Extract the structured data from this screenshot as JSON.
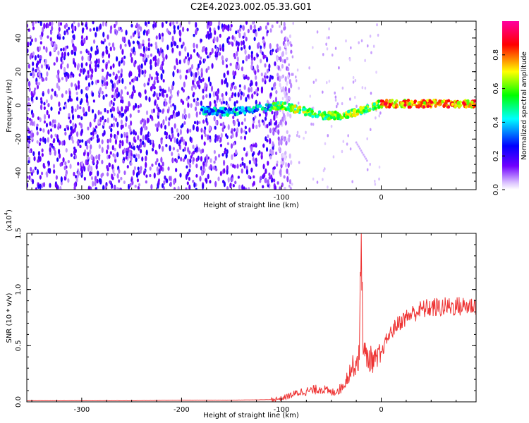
{
  "title": "C2E4.2023.002.05.33.G01",
  "chart_data": [
    {
      "type": "heatmap",
      "xlabel": "Height of straight line (km)",
      "ylabel": "Frequency (Hz)",
      "xlim": [
        -355,
        95
      ],
      "ylim": [
        -50,
        50
      ],
      "xticks": [
        -300,
        -200,
        -100,
        0
      ],
      "xtick_labels": [
        "-300",
        "-200",
        "-100",
        "0"
      ],
      "yticks": [
        -40,
        -20,
        0,
        20,
        40
      ],
      "ytick_labels": [
        "-40",
        "-20",
        "0",
        "20",
        "40"
      ],
      "noise_region_x": [
        -355,
        -105
      ],
      "signal_track": {
        "x": [
          -180,
          -150,
          -120,
          -100,
          -80,
          -60,
          -40,
          -25,
          -10,
          0,
          20,
          50,
          95
        ],
        "y": [
          -3,
          -4,
          -2,
          0,
          -3,
          -6,
          -6,
          -4,
          -1,
          1,
          1,
          1,
          1
        ]
      },
      "colorbar": {
        "label": "Normalized spectral amplitude",
        "ticks": [
          0.0,
          0.2,
          0.4,
          0.6,
          0.8
        ],
        "tick_labels": [
          "0.0",
          "0.2",
          "0.4",
          "0.6",
          "0.8"
        ],
        "range": [
          0,
          1
        ],
        "colors": [
          "#ffffff",
          "#7000ff",
          "#0000ff",
          "#00ffff",
          "#00ff00",
          "#ffff00",
          "#ff0000",
          "#ff00a0"
        ]
      }
    },
    {
      "type": "line",
      "xlabel": "Height of straight line (km)",
      "ylabel": "SNR (10 * v/v)",
      "y_multiplier": "(x10",
      "y_multiplier_exp": "4",
      "y_multiplier_close": ")",
      "xlim": [
        -355,
        95
      ],
      "ylim": [
        0,
        1.5
      ],
      "xticks": [
        -300,
        -200,
        -100,
        0
      ],
      "xtick_labels": [
        "-300",
        "-200",
        "-100",
        "0"
      ],
      "yticks": [
        0,
        0.5,
        1.0,
        1.5
      ],
      "ytick_labels": [
        "0.0",
        "0.5",
        "1.0",
        "1.5"
      ],
      "color": "#ee3333",
      "series": [
        {
          "x": [
            -355,
            -300,
            -250,
            -200,
            -150,
            -110,
            -100,
            -90,
            -80,
            -70,
            -60,
            -50,
            -40,
            -35,
            -30,
            -25,
            -22,
            -20,
            -18,
            -15,
            -10,
            -5,
            0,
            5,
            10,
            15,
            20,
            30,
            40,
            50,
            60,
            70,
            80,
            95
          ],
          "y": [
            0.01,
            0.01,
            0.01,
            0.015,
            0.015,
            0.02,
            0.03,
            0.06,
            0.09,
            0.1,
            0.12,
            0.08,
            0.12,
            0.2,
            0.3,
            0.35,
            0.4,
            1.5,
            0.45,
            0.4,
            0.38,
            0.36,
            0.42,
            0.55,
            0.62,
            0.68,
            0.72,
            0.78,
            0.82,
            0.84,
            0.84,
            0.85,
            0.85,
            0.86
          ]
        }
      ]
    }
  ]
}
